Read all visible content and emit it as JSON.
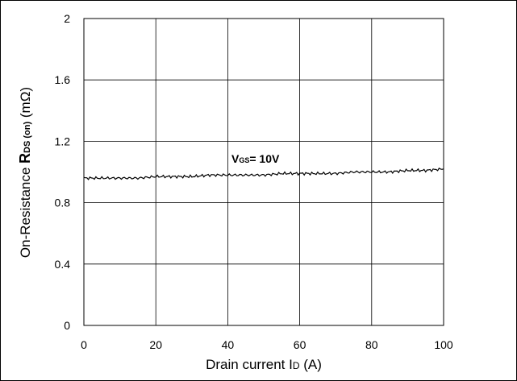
{
  "chart_data": {
    "type": "line",
    "xlabel": {
      "prefix": "Drain current I",
      "sub": "D",
      "suffix": " (A)"
    },
    "ylabel": {
      "prefix": "On-Resistance ",
      "main": "R",
      "sub": "DS (on)",
      "suffix": " (mΩ)"
    },
    "annotation": {
      "main": "V",
      "sub": "GS",
      "suffix": "= 10V",
      "x": 40,
      "y": 1.0
    },
    "xlim": [
      0,
      100
    ],
    "ylim": [
      0,
      2
    ],
    "x_ticks": [
      0,
      20,
      40,
      60,
      80,
      100
    ],
    "x_tick_labels": [
      "0",
      "20",
      "40",
      "60",
      "80",
      "100"
    ],
    "y_ticks": [
      0,
      0.4,
      0.8,
      1.2,
      1.6,
      2
    ],
    "y_tick_labels": [
      "0",
      "0.4",
      "0.8",
      "1.2",
      "1.6",
      "2"
    ],
    "grid": true,
    "series": [
      {
        "color": "#000000",
        "x": [
          0,
          5,
          10,
          15,
          20,
          25,
          30,
          35,
          40,
          45,
          50,
          55,
          60,
          65,
          70,
          75,
          80,
          85,
          90,
          95,
          100
        ],
        "y": [
          0.96,
          0.96,
          0.96,
          0.96,
          0.97,
          0.97,
          0.97,
          0.98,
          0.98,
          0.98,
          0.98,
          0.99,
          0.99,
          0.99,
          0.99,
          1.0,
          1.0,
          1.0,
          1.01,
          1.01,
          1.02
        ]
      }
    ]
  }
}
